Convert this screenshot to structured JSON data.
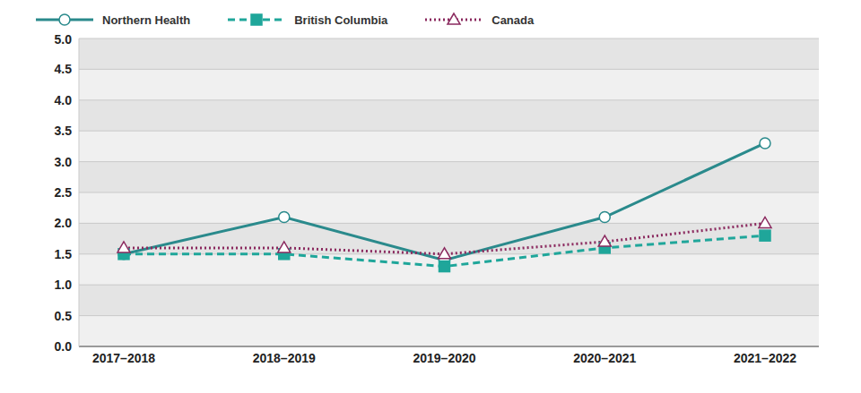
{
  "chart_data": {
    "type": "line",
    "categories": [
      "2017–2018",
      "2018–2019",
      "2019–2020",
      "2020–2021",
      "2021–2022"
    ],
    "series": [
      {
        "name": "Northern Health",
        "color": "#2a8a8c",
        "marker": "open_circle",
        "line_style": "solid",
        "values": [
          1.5,
          2.1,
          1.4,
          2.1,
          3.3
        ]
      },
      {
        "name": "British Columbia",
        "color": "#1fa69a",
        "marker": "square",
        "line_style": "dashed",
        "values": [
          1.5,
          1.5,
          1.3,
          1.6,
          1.8
        ]
      },
      {
        "name": "Canada",
        "color": "#8b2a5f",
        "marker": "open_triangle",
        "line_style": "dotted",
        "values": [
          1.6,
          1.6,
          1.5,
          1.7,
          2.0
        ]
      }
    ],
    "ylim": [
      0,
      5
    ],
    "yticks": [
      {
        "value": 0,
        "label": "0.0"
      },
      0.5,
      {
        "value": 1,
        "label": "1.0"
      },
      1.5,
      {
        "value": 2,
        "label": "2.0"
      },
      2.5,
      {
        "value": 3,
        "label": "3.0"
      },
      3.5,
      {
        "value": 4,
        "label": "4.0"
      },
      4.5,
      {
        "value": 5,
        "label": "5.0"
      }
    ],
    "grid": true,
    "legend": "top-left"
  }
}
